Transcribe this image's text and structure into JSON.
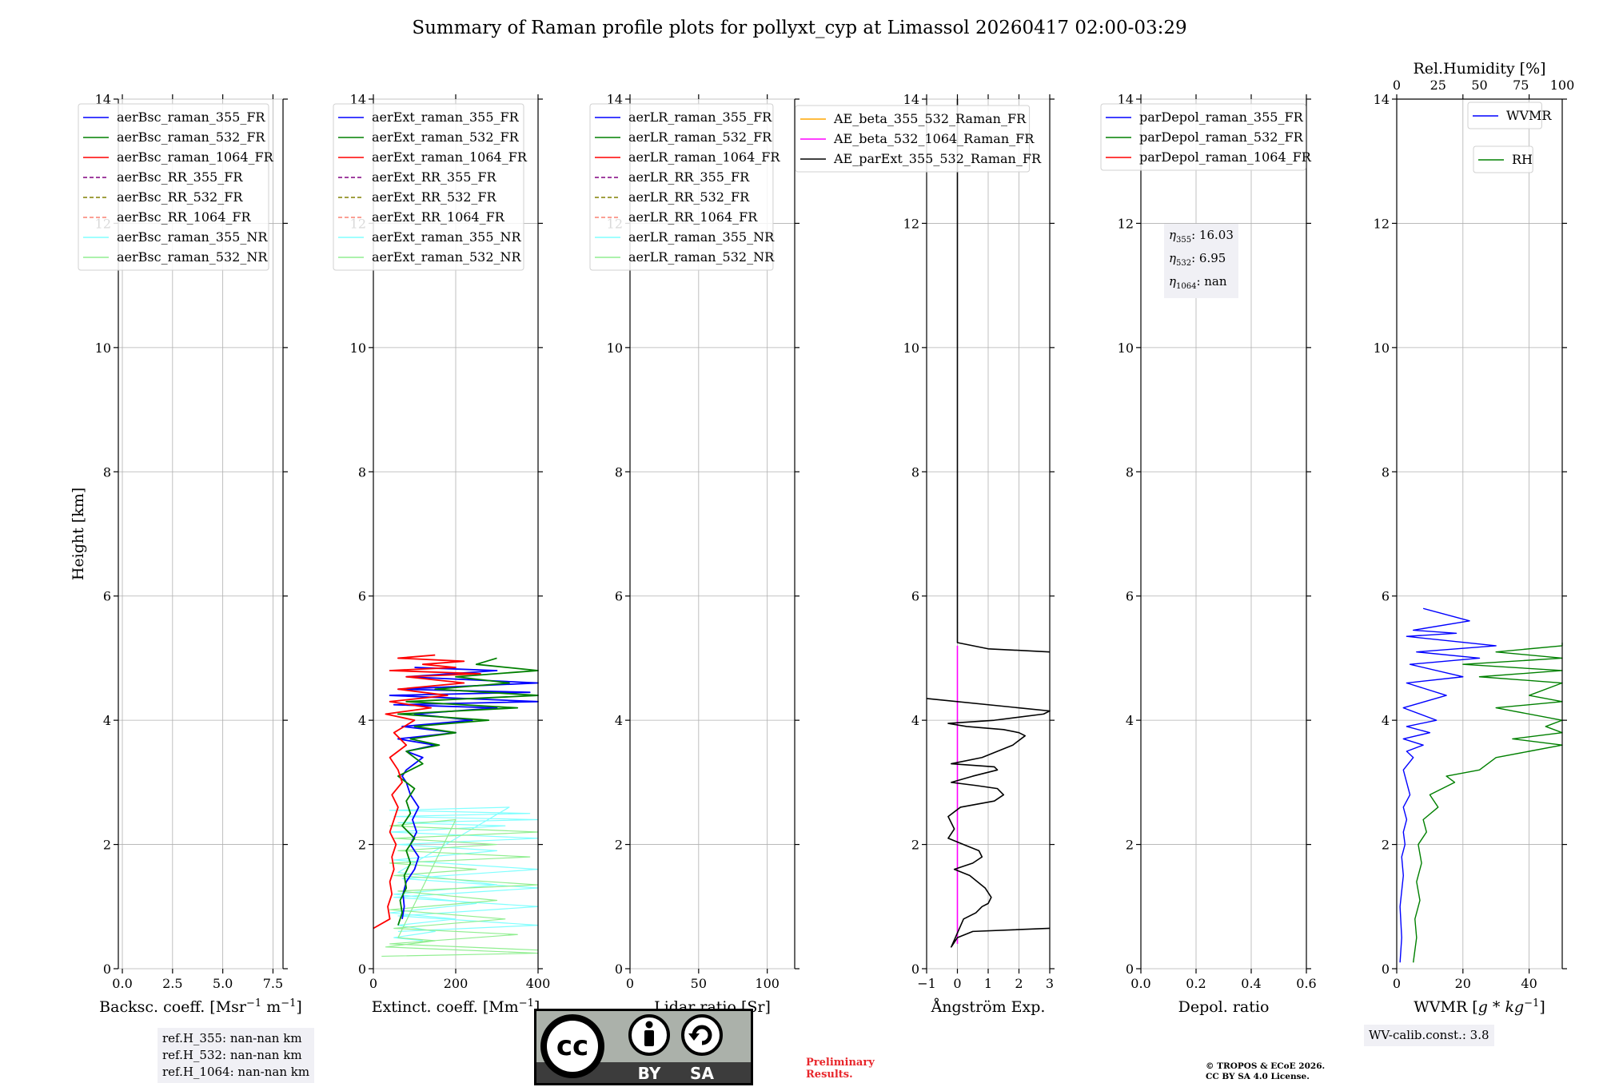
{
  "title": "Summary of Raman profile plots for pollyxt_cyp at Limassol 20260417 02:00-03:29",
  "ylabel": "Height [km]",
  "ref_box": [
    "ref.H_355: nan-nan km",
    "ref.H_532: nan-nan km",
    "ref.H_1064: nan-nan km"
  ],
  "eta_box": {
    "l1_sym": "η",
    "l1_sub": "355",
    "l1_val": ": 16.03",
    "l2_sym": "η",
    "l2_sub": "532",
    "l2_val": ": 6.95",
    "l3_sym": "η",
    "l3_sub": "1064",
    "l3_val": ": nan"
  },
  "wv_box": "WV-calib.const.: 3.8",
  "preliminary": [
    "Preliminary",
    "Results."
  ],
  "copyright": [
    "© TROPOS & ECoE 2026.",
    "CC BY SA 4.0 License."
  ],
  "cc_badge": {
    "cc": "cc",
    "by": "BY",
    "sa": "SA"
  },
  "colors": {
    "blue": "#0000ff",
    "green": "#008000",
    "red": "#ff0000",
    "purple": "#800080",
    "olive": "#808000",
    "salmon": "#fa8072",
    "cyan": "#80ffff",
    "lightgreen": "#90ee90",
    "orange": "#ffa500",
    "magenta": "#ff00ff",
    "black": "#000000"
  },
  "chart_data": [
    {
      "type": "line",
      "name": "backscatter",
      "xlabel_parts": [
        "Backsc. coeff. [Msr",
        "−1",
        " m",
        "−1",
        "]"
      ],
      "xlim": [
        -0.2,
        8.0
      ],
      "ylim": [
        0,
        14
      ],
      "xticks": [
        0,
        2.5,
        5,
        7.5
      ],
      "xticklabels": [
        "0.0",
        "2.5",
        "5.0",
        "7.5"
      ],
      "yticks": [
        0,
        2,
        4,
        6,
        8,
        10,
        12,
        14
      ],
      "yticklabels": [
        "0",
        "2",
        "4",
        "6",
        "8",
        "10",
        "12",
        "14"
      ],
      "legend": [
        {
          "label": "aerBsc_raman_355_FR",
          "color": "blue",
          "dash": false
        },
        {
          "label": "aerBsc_raman_532_FR",
          "color": "green",
          "dash": false
        },
        {
          "label": "aerBsc_raman_1064_FR",
          "color": "red",
          "dash": false
        },
        {
          "label": "aerBsc_RR_355_FR",
          "color": "purple",
          "dash": true
        },
        {
          "label": "aerBsc_RR_532_FR",
          "color": "olive",
          "dash": true
        },
        {
          "label": "aerBsc_RR_1064_FR",
          "color": "salmon",
          "dash": true
        },
        {
          "label": "aerBsc_raman_355_NR",
          "color": "cyan",
          "dash": false
        },
        {
          "label": "aerBsc_raman_532_NR",
          "color": "lightgreen",
          "dash": false
        }
      ],
      "series": []
    },
    {
      "type": "line",
      "name": "extinction",
      "xlabel_parts": [
        "Extinct. coeff. [Mm",
        "−1",
        "]"
      ],
      "xlim": [
        0,
        400
      ],
      "ylim": [
        0,
        14
      ],
      "xticks": [
        0,
        200,
        400
      ],
      "xticklabels": [
        "0",
        "200",
        "400"
      ],
      "yticks": [
        0,
        2,
        4,
        6,
        8,
        10,
        12,
        14
      ],
      "yticklabels": [
        "0",
        "2",
        "4",
        "6",
        "8",
        "10",
        "12",
        "14"
      ],
      "legend": [
        {
          "label": "aerExt_raman_355_FR",
          "color": "blue",
          "dash": false
        },
        {
          "label": "aerExt_raman_532_FR",
          "color": "green",
          "dash": false
        },
        {
          "label": "aerExt_raman_1064_FR",
          "color": "red",
          "dash": false
        },
        {
          "label": "aerExt_RR_355_FR",
          "color": "purple",
          "dash": true
        },
        {
          "label": "aerExt_RR_532_FR",
          "color": "olive",
          "dash": true
        },
        {
          "label": "aerExt_RR_1064_FR",
          "color": "salmon",
          "dash": true
        },
        {
          "label": "aerExt_raman_355_NR",
          "color": "cyan",
          "dash": false
        },
        {
          "label": "aerExt_raman_532_NR",
          "color": "lightgreen",
          "dash": false
        }
      ],
      "series": [
        {
          "name": "aerExt_raman_355_NR",
          "color": "cyan",
          "width": 1.2,
          "x": [
            60,
            420,
            60,
            420,
            50,
            400,
            70,
            420,
            50,
            300,
            60,
            420,
            40,
            320,
            60,
            420,
            50,
            380,
            40,
            330,
            60,
            300,
            50,
            250,
            40,
            200,
            60,
            150,
            50,
            120
          ],
          "y": [
            0.6,
            0.7,
            0.85,
            1.0,
            1.15,
            1.3,
            1.45,
            1.6,
            1.75,
            1.9,
            2.0,
            2.1,
            2.2,
            2.3,
            2.35,
            2.4,
            2.45,
            2.5,
            2.55,
            2.6,
            1.55,
            1.35,
            1.2,
            1.05,
            0.9,
            0.8,
            0.7,
            0.6,
            0.5,
            0.45
          ]
        },
        {
          "name": "aerExt_raman_532_NR",
          "color": "lightgreen",
          "width": 1.2,
          "x": [
            400,
            40,
            350,
            50,
            320,
            40,
            300,
            60,
            400,
            50,
            250,
            40,
            380,
            60,
            300,
            50,
            400,
            40,
            200,
            60,
            150,
            30,
            400,
            20
          ],
          "y": [
            0.3,
            0.4,
            0.55,
            0.65,
            0.8,
            0.95,
            1.1,
            1.25,
            1.35,
            1.5,
            1.6,
            1.7,
            1.8,
            1.9,
            2.0,
            2.1,
            2.2,
            2.3,
            2.4,
            0.5,
            0.45,
            0.35,
            0.25,
            0.2
          ]
        },
        {
          "name": "aerExt_raman_355_FR",
          "color": "blue",
          "width": 1.8,
          "x": [
            70,
            75,
            72,
            80,
            100,
            110,
            90,
            105,
            95,
            110,
            90,
            80,
            70,
            80,
            100,
            120,
            80,
            150,
            60,
            200,
            70,
            240,
            100,
            300,
            50,
            400,
            40,
            380,
            60,
            420,
            80,
            300,
            100
          ],
          "y": [
            0.8,
            1.0,
            1.2,
            1.4,
            1.6,
            1.8,
            2.0,
            2.2,
            2.4,
            2.6,
            2.8,
            3.0,
            3.1,
            3.2,
            3.3,
            3.4,
            3.5,
            3.6,
            3.7,
            3.8,
            3.9,
            4.0,
            4.1,
            4.2,
            4.25,
            4.3,
            4.4,
            4.45,
            4.5,
            4.6,
            4.7,
            4.8,
            4.85
          ]
        },
        {
          "name": "aerExt_raman_532_FR",
          "color": "green",
          "width": 1.8,
          "x": [
            60,
            70,
            65,
            80,
            75,
            90,
            80,
            100,
            70,
            90,
            80,
            100,
            60,
            120,
            80,
            160,
            90,
            200,
            100,
            280,
            60,
            350,
            80,
            420,
            150,
            330,
            200,
            400,
            250,
            300
          ],
          "y": [
            0.7,
            0.9,
            1.1,
            1.3,
            1.5,
            1.7,
            1.9,
            2.1,
            2.3,
            2.5,
            2.7,
            2.9,
            3.1,
            3.3,
            3.5,
            3.6,
            3.7,
            3.8,
            3.9,
            4.0,
            4.1,
            4.2,
            4.3,
            4.4,
            4.5,
            4.6,
            4.7,
            4.8,
            4.9,
            5.0
          ]
        },
        {
          "name": "aerExt_raman_1064_FR",
          "color": "red",
          "width": 1.8,
          "x": [
            0,
            40,
            35,
            45,
            40,
            50,
            45,
            55,
            40,
            50,
            60,
            45,
            70,
            60,
            40,
            80,
            50,
            100,
            30,
            140,
            40,
            180,
            60,
            220,
            80,
            260,
            40,
            200,
            120,
            220,
            60,
            150
          ],
          "y": [
            0.65,
            0.8,
            1.0,
            1.2,
            1.4,
            1.6,
            1.8,
            2.0,
            2.2,
            2.4,
            2.6,
            2.8,
            3.0,
            3.2,
            3.4,
            3.6,
            3.8,
            4.0,
            4.1,
            4.2,
            4.3,
            4.4,
            4.5,
            4.6,
            4.7,
            4.75,
            4.8,
            4.85,
            4.9,
            4.95,
            5.0,
            5.05
          ]
        }
      ]
    },
    {
      "type": "line",
      "name": "lidar_ratio",
      "xlabel_parts": [
        "Lidar ratio [Sr]"
      ],
      "xlim": [
        0,
        120
      ],
      "ylim": [
        0,
        14
      ],
      "xticks": [
        0,
        50,
        100
      ],
      "xticklabels": [
        "0",
        "50",
        "100"
      ],
      "yticks": [
        0,
        2,
        4,
        6,
        8,
        10,
        12,
        14
      ],
      "yticklabels": [
        "0",
        "2",
        "4",
        "6",
        "8",
        "10",
        "12",
        "14"
      ],
      "legend": [
        {
          "label": "aerLR_raman_355_FR",
          "color": "blue",
          "dash": false
        },
        {
          "label": "aerLR_raman_532_FR",
          "color": "green",
          "dash": false
        },
        {
          "label": "aerLR_raman_1064_FR",
          "color": "red",
          "dash": false
        },
        {
          "label": "aerLR_RR_355_FR",
          "color": "purple",
          "dash": true
        },
        {
          "label": "aerLR_RR_532_FR",
          "color": "olive",
          "dash": true
        },
        {
          "label": "aerLR_RR_1064_FR",
          "color": "salmon",
          "dash": true
        },
        {
          "label": "aerLR_raman_355_NR",
          "color": "cyan",
          "dash": false
        },
        {
          "label": "aerLR_raman_532_NR",
          "color": "lightgreen",
          "dash": false
        }
      ],
      "series": []
    },
    {
      "type": "line",
      "name": "angstrom",
      "xlabel_parts": [
        "Ångström Exp."
      ],
      "xlim": [
        -1,
        3
      ],
      "ylim": [
        0,
        14
      ],
      "xticks": [
        -1,
        0,
        1,
        2,
        3
      ],
      "xticklabels": [
        "−1",
        "0",
        "1",
        "2",
        "3"
      ],
      "yticks": [
        0,
        2,
        4,
        6,
        8,
        10,
        12,
        14
      ],
      "yticklabels": [
        "0",
        "2",
        "4",
        "6",
        "8",
        "10",
        "12",
        "14"
      ],
      "legend": [
        {
          "label": "AE_beta_355_532_Raman_FR",
          "color": "orange",
          "dash": false
        },
        {
          "label": "AE_beta_532_1064_Raman_FR",
          "color": "magenta",
          "dash": false
        },
        {
          "label": "AE_parExt_355_532_Raman_FR",
          "color": "black",
          "dash": false
        }
      ],
      "series": [
        {
          "name": "AE_beta_532_1064_Raman_FR",
          "color": "magenta",
          "width": 1.6,
          "x": [
            0,
            0
          ],
          "y": [
            0.4,
            5.2
          ]
        },
        {
          "name": "AE_parExt_355_532_Raman_FR",
          "color": "black",
          "width": 1.6,
          "x": [
            3.0,
            0.5,
            0.0,
            -0.2,
            0.2,
            0.6,
            0.8,
            1.0,
            1.1,
            0.9,
            0.4,
            -0.1,
            0.5,
            0.8,
            0.7,
            0.2,
            -0.3,
            -0.1,
            -0.2,
            -0.3,
            0.1,
            1.2,
            1.5,
            1.3,
            0.6,
            -0.2,
            0.5,
            1.3,
            1.2,
            -0.2,
            0.8,
            1.8,
            2.2,
            2.0,
            1.5,
            0.3,
            -0.3,
            1.2,
            2.8,
            3.0,
            -1.0
          ],
          "y": [
            0.65,
            0.6,
            0.5,
            0.35,
            0.8,
            0.9,
            1.0,
            1.05,
            1.15,
            1.3,
            1.5,
            1.6,
            1.7,
            1.8,
            1.9,
            2.0,
            2.1,
            2.25,
            2.35,
            2.45,
            2.6,
            2.7,
            2.8,
            2.9,
            2.95,
            3.0,
            3.1,
            3.2,
            3.25,
            3.3,
            3.4,
            3.6,
            3.75,
            3.8,
            3.85,
            3.9,
            3.95,
            4.0,
            4.1,
            4.15,
            4.35
          ]
        },
        {
          "name": "AE_parExt_upper",
          "color": "black",
          "width": 1.6,
          "x": [
            3.0,
            1.0,
            0.0,
            0.0
          ],
          "y": [
            5.1,
            5.15,
            5.25,
            14
          ]
        }
      ]
    },
    {
      "type": "line",
      "name": "depol",
      "xlabel_parts": [
        "Depol. ratio"
      ],
      "xlim": [
        0,
        0.6
      ],
      "ylim": [
        0,
        14
      ],
      "xticks": [
        0,
        0.2,
        0.4,
        0.6
      ],
      "xticklabels": [
        "0.0",
        "0.2",
        "0.4",
        "0.6"
      ],
      "yticks": [
        0,
        2,
        4,
        6,
        8,
        10,
        12,
        14
      ],
      "yticklabels": [
        "0",
        "2",
        "4",
        "6",
        "8",
        "10",
        "12",
        "14"
      ],
      "legend": [
        {
          "label": "parDepol_raman_355_FR",
          "color": "blue",
          "dash": false
        },
        {
          "label": "parDepol_raman_532_FR",
          "color": "green",
          "dash": false
        },
        {
          "label": "parDepol_raman_1064_FR",
          "color": "red",
          "dash": false
        }
      ],
      "series": []
    },
    {
      "type": "line",
      "name": "wvmr",
      "xlabel_parts": [
        "WVMR [",
        "g * kg",
        "−1",
        "]"
      ],
      "xlim": [
        0,
        50
      ],
      "ylim": [
        0,
        14
      ],
      "xticks": [
        0,
        20,
        40
      ],
      "xticklabels": [
        "0",
        "20",
        "40"
      ],
      "yticks": [
        0,
        2,
        4,
        6,
        8,
        10,
        12,
        14
      ],
      "yticklabels": [
        "0",
        "2",
        "4",
        "6",
        "8",
        "10",
        "12",
        "14"
      ],
      "top_axis": {
        "label": "Rel.Humidity [%]",
        "xlim": [
          0,
          100
        ],
        "xticks": [
          0,
          25,
          50,
          75,
          100
        ],
        "xticklabels": [
          "0",
          "25",
          "50",
          "75",
          "100"
        ]
      },
      "legend": [
        {
          "label": "WVMR",
          "color": "blue",
          "dash": false
        }
      ],
      "legend2": [
        {
          "label": "RH",
          "color": "green",
          "dash": false
        }
      ],
      "series": [
        {
          "name": "WVMR",
          "color": "blue",
          "width": 1.4,
          "axis": "bottom",
          "x": [
            1,
            1.5,
            1,
            2,
            1.5,
            2.5,
            2,
            3,
            2,
            4,
            3,
            2,
            5,
            3,
            8,
            2,
            10,
            3,
            12,
            2,
            15,
            3,
            20,
            4,
            25,
            6,
            30,
            3,
            18,
            5,
            22,
            8
          ],
          "y": [
            0.1,
            0.5,
            1.0,
            1.5,
            1.8,
            2.0,
            2.2,
            2.4,
            2.6,
            2.8,
            3.0,
            3.2,
            3.4,
            3.5,
            3.6,
            3.7,
            3.8,
            3.9,
            4.0,
            4.2,
            4.4,
            4.6,
            4.7,
            4.9,
            5.0,
            5.1,
            5.2,
            5.35,
            5.4,
            5.45,
            5.6,
            5.8
          ]
        },
        {
          "name": "RH",
          "color": "green",
          "width": 1.4,
          "axis": "top",
          "x": [
            10,
            12,
            11,
            14,
            12,
            15,
            13,
            18,
            16,
            25,
            20,
            35,
            30,
            50,
            60,
            80,
            100,
            70,
            100,
            90,
            100,
            60,
            100,
            80,
            100,
            50,
            100,
            40,
            100,
            60,
            100,
            100
          ],
          "y": [
            0.1,
            0.5,
            0.8,
            1.1,
            1.4,
            1.7,
            2.0,
            2.2,
            2.4,
            2.6,
            2.8,
            3.0,
            3.1,
            3.2,
            3.4,
            3.5,
            3.6,
            3.7,
            3.8,
            3.9,
            4.0,
            4.2,
            4.3,
            4.4,
            4.6,
            4.7,
            4.8,
            4.9,
            5.0,
            5.1,
            5.2,
            5.25
          ]
        }
      ]
    }
  ]
}
